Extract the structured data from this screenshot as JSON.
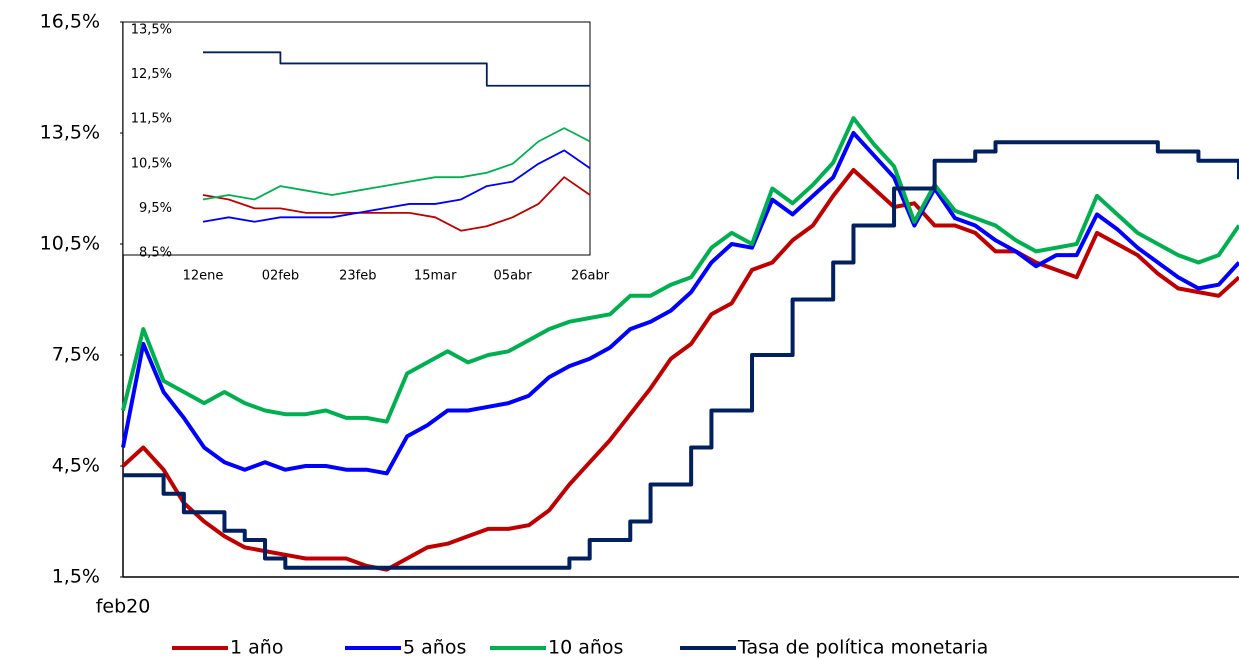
{
  "chart_data": [
    {
      "type": "line",
      "categories": [
        "feb20",
        null,
        null,
        null,
        null,
        null,
        null,
        null,
        null,
        null,
        null,
        null,
        null,
        null,
        null,
        null,
        null,
        null,
        null,
        null,
        null,
        null,
        null,
        null,
        null,
        null,
        null,
        null,
        null,
        null,
        null,
        null,
        null,
        null,
        null,
        null,
        null,
        null,
        null,
        null,
        null,
        null,
        null,
        null,
        null,
        null,
        null,
        null,
        null,
        null,
        null,
        null,
        null,
        null,
        null,
        null
      ],
      "ylim": [
        1.5,
        16.5
      ],
      "yticks": [
        {
          "value": 1.5,
          "label": "1,5%"
        },
        {
          "value": 4.5,
          "label": "4,5%"
        },
        {
          "value": 7.5,
          "label": "7,5%"
        },
        {
          "value": 10.5,
          "label": "10,5%"
        },
        {
          "value": 13.5,
          "label": "13,5%"
        },
        {
          "value": 16.5,
          "label": "16,5%"
        }
      ],
      "series": [
        {
          "name": "1 año",
          "color": "#c00000",
          "values": [
            4.5,
            5.0,
            4.4,
            3.5,
            3.0,
            2.6,
            2.3,
            2.2,
            2.1,
            2.0,
            2.0,
            2.0,
            1.8,
            1.7,
            2.0,
            2.3,
            2.4,
            2.6,
            2.8,
            2.8,
            2.9,
            3.3,
            4.0,
            4.6,
            5.2,
            5.9,
            6.6,
            7.4,
            7.8,
            8.6,
            8.9,
            9.8,
            10.0,
            10.6,
            11.0,
            11.8,
            12.5,
            12.0,
            11.5,
            11.6,
            11.0,
            11.0,
            10.8,
            10.3,
            10.3,
            10.0,
            9.8,
            9.6,
            10.8,
            10.5,
            10.2,
            9.7,
            9.3,
            9.2,
            9.1,
            9.6
          ]
        },
        {
          "name": "5 años",
          "color": "#0000ff",
          "values": [
            5.0,
            7.8,
            6.5,
            5.8,
            5.0,
            4.6,
            4.4,
            4.6,
            4.4,
            4.5,
            4.5,
            4.4,
            4.4,
            4.3,
            5.3,
            5.6,
            6.0,
            6.0,
            6.1,
            6.2,
            6.4,
            6.9,
            7.2,
            7.4,
            7.7,
            8.2,
            8.4,
            8.7,
            9.2,
            10.0,
            10.5,
            10.4,
            11.7,
            11.3,
            11.8,
            12.3,
            13.5,
            12.9,
            12.3,
            11.0,
            12.0,
            11.2,
            11.0,
            10.6,
            10.3,
            9.9,
            10.2,
            10.2,
            11.3,
            10.9,
            10.4,
            10.0,
            9.6,
            9.3,
            9.4,
            10.0
          ]
        },
        {
          "name": "10 años",
          "color": "#00b050",
          "values": [
            6.0,
            8.2,
            6.8,
            6.5,
            6.2,
            6.5,
            6.2,
            6.0,
            5.9,
            5.9,
            6.0,
            5.8,
            5.8,
            5.7,
            7.0,
            7.3,
            7.6,
            7.3,
            7.5,
            7.6,
            7.9,
            8.2,
            8.4,
            8.5,
            8.6,
            9.1,
            9.1,
            9.4,
            9.6,
            10.4,
            10.8,
            10.5,
            12.0,
            11.6,
            12.1,
            12.7,
            13.9,
            13.2,
            12.6,
            11.1,
            12.1,
            11.4,
            11.2,
            11.0,
            10.6,
            10.3,
            10.4,
            10.5,
            11.8,
            11.3,
            10.8,
            10.5,
            10.2,
            10.0,
            10.2,
            11.0
          ]
        },
        {
          "name": "Tasa de política monetaria",
          "color": "#002060",
          "step": true,
          "values": [
            4.25,
            4.25,
            3.75,
            3.25,
            3.25,
            2.75,
            2.5,
            2.0,
            1.75,
            1.75,
            1.75,
            1.75,
            1.75,
            1.75,
            1.75,
            1.75,
            1.75,
            1.75,
            1.75,
            1.75,
            1.75,
            1.75,
            2.0,
            2.5,
            2.5,
            3.0,
            4.0,
            4.0,
            5.0,
            6.0,
            6.0,
            7.5,
            7.5,
            9.0,
            9.0,
            10.0,
            11.0,
            11.0,
            12.0,
            12.0,
            12.75,
            12.75,
            13.0,
            13.25,
            13.25,
            13.25,
            13.25,
            13.25,
            13.25,
            13.25,
            13.25,
            13.0,
            13.0,
            12.75,
            12.75,
            12.25
          ]
        }
      ]
    },
    {
      "type": "line",
      "categories": [
        "12ene",
        null,
        null,
        "02feb",
        null,
        null,
        "23feb",
        null,
        null,
        "15mar",
        null,
        null,
        "05abr",
        null,
        null,
        "26abr"
      ],
      "ylim": [
        8.5,
        13.5
      ],
      "yticks": [
        {
          "value": 8.5,
          "label": "8,5%"
        },
        {
          "value": 9.5,
          "label": "9,5%"
        },
        {
          "value": 10.5,
          "label": "10,5%"
        },
        {
          "value": 11.5,
          "label": "11,5%"
        },
        {
          "value": 12.5,
          "label": "12,5%"
        },
        {
          "value": 13.5,
          "label": "13,5%"
        }
      ],
      "series": [
        {
          "color": "#c00000",
          "values": [
            9.8,
            9.7,
            9.5,
            9.5,
            9.4,
            9.4,
            9.4,
            9.4,
            9.4,
            9.3,
            9.0,
            9.1,
            9.3,
            9.6,
            10.2,
            9.8
          ]
        },
        {
          "color": "#0000ff",
          "values": [
            9.2,
            9.3,
            9.2,
            9.3,
            9.3,
            9.3,
            9.4,
            9.5,
            9.6,
            9.6,
            9.7,
            10.0,
            10.1,
            10.5,
            10.8,
            10.4
          ]
        },
        {
          "color": "#00b050",
          "values": [
            9.7,
            9.8,
            9.7,
            10.0,
            9.9,
            9.8,
            9.9,
            10.0,
            10.1,
            10.2,
            10.2,
            10.3,
            10.5,
            11.0,
            11.3,
            11.0
          ]
        },
        {
          "color": "#002060",
          "step": true,
          "values": [
            13.0,
            13.0,
            13.0,
            12.75,
            12.75,
            12.75,
            12.75,
            12.75,
            12.75,
            12.75,
            12.75,
            12.25,
            12.25,
            12.25,
            12.25,
            12.25
          ]
        }
      ]
    }
  ]
}
